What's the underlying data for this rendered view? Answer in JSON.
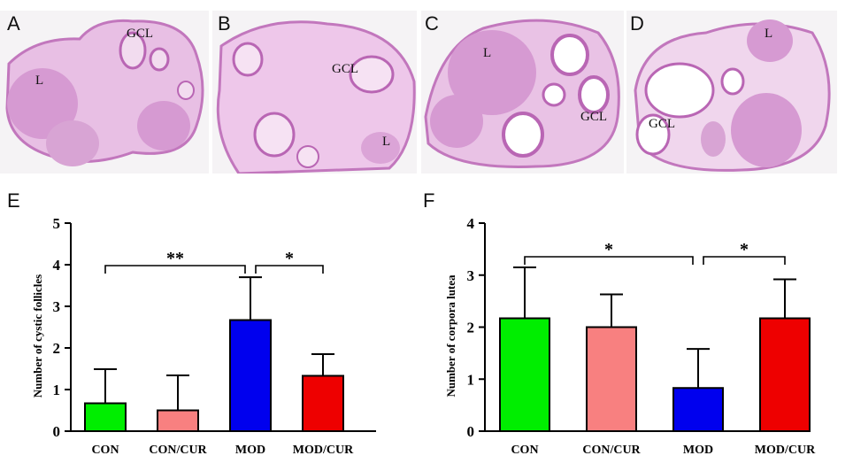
{
  "panels": [
    {
      "letter": "A",
      "labels": [
        "GCL",
        "L"
      ]
    },
    {
      "letter": "B",
      "labels": [
        "GCL",
        "L"
      ]
    },
    {
      "letter": "C",
      "labels": [
        "L",
        "GCL"
      ]
    },
    {
      "letter": "D",
      "labels": [
        "L",
        "GCL"
      ]
    }
  ],
  "colors": {
    "CON": "#00ee00",
    "CON/CUR": "#f88080",
    "MOD": "#0000ee",
    "MOD/CUR": "#ee0000",
    "tissue": "#c87dc4",
    "tissue_bg": "#f3e8f1"
  },
  "chart_data": [
    {
      "type": "bar",
      "panel": "E",
      "categories": [
        "CON",
        "CON/CUR",
        "MOD",
        "MOD/CUR"
      ],
      "values": [
        0.67,
        0.5,
        2.67,
        1.33
      ],
      "errors": [
        0.82,
        0.84,
        1.03,
        0.52
      ],
      "ylabel": "Number of cystic follicles",
      "ylim": [
        0,
        5
      ],
      "yticks": [
        "0",
        "1",
        "2",
        "3",
        "4",
        "5"
      ],
      "significance": [
        {
          "from": "CON",
          "to": "MOD",
          "label": "**"
        },
        {
          "from": "MOD",
          "to": "MOD/CUR",
          "label": "*"
        }
      ]
    },
    {
      "type": "bar",
      "panel": "F",
      "categories": [
        "CON",
        "CON/CUR",
        "MOD",
        "MOD/CUR"
      ],
      "values": [
        2.17,
        2.0,
        0.83,
        2.17
      ],
      "errors": [
        0.98,
        0.63,
        0.75,
        0.75
      ],
      "ylabel": "Number of corpora lutea",
      "ylim": [
        0,
        4
      ],
      "yticks": [
        "0",
        "1",
        "2",
        "3",
        "4"
      ],
      "significance": [
        {
          "from": "CON",
          "to": "MOD",
          "label": "*"
        },
        {
          "from": "MOD",
          "to": "MOD/CUR",
          "label": "*"
        }
      ]
    }
  ]
}
